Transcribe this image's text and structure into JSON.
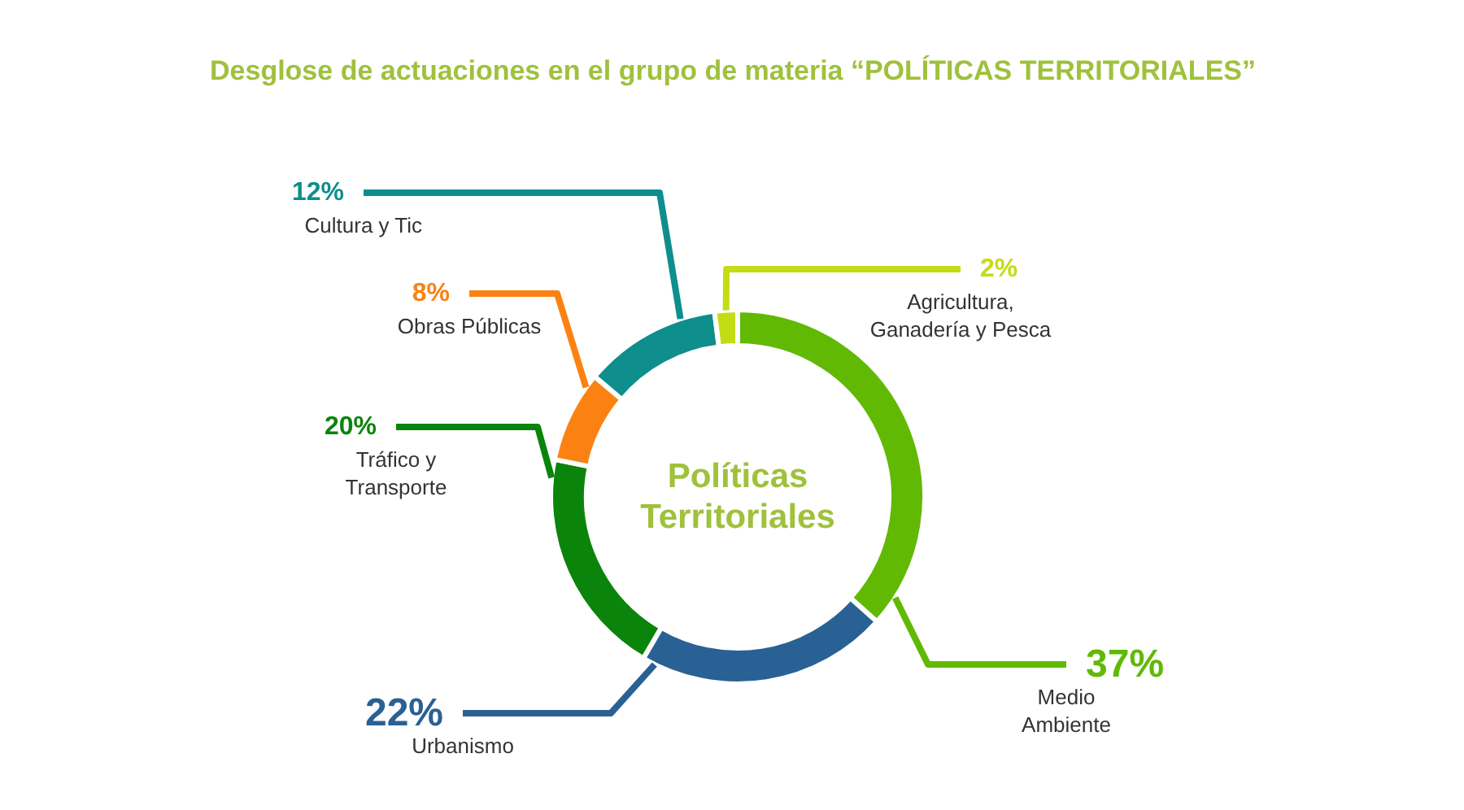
{
  "chart_data": {
    "type": "donut",
    "title": "Desglose de actuaciones en el grupo de materia “POLÍTICAS TERRITORIALES”",
    "categories": [
      "Medio Ambiente",
      "Urbanismo",
      "Tráfico y Transporte",
      "Obras Públicas",
      "Cultura y Tic",
      "Agricultura, Ganadería y Pesca"
    ],
    "values": [
      37,
      22,
      20,
      8,
      12,
      2
    ],
    "colors": [
      "#61b904",
      "#2a6194",
      "#0b840c",
      "#fb8212",
      "#0e8e8c",
      "#c4dc14"
    ],
    "value_labels": [
      "37%",
      "22%",
      "20%",
      "8%",
      "12%",
      "2%"
    ],
    "annotations": [
      "Políticas Territoriales"
    ]
  }
}
